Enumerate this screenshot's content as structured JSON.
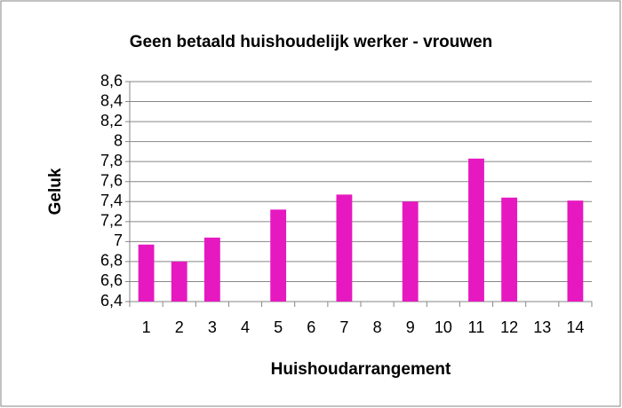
{
  "chart_data": {
    "type": "bar",
    "title": "Geen betaald huishoudelijk werker - vrouwen",
    "x_label": "Huishoudarrangement",
    "y_label": "Geluk",
    "categories": [
      "1",
      "2",
      "3",
      "4",
      "5",
      "6",
      "7",
      "8",
      "9",
      "10",
      "11",
      "12",
      "13",
      "14"
    ],
    "values": [
      6.97,
      6.8,
      7.04,
      null,
      7.32,
      null,
      7.47,
      null,
      7.4,
      null,
      7.83,
      7.44,
      null,
      7.41
    ],
    "color": "#e619c0",
    "ylim": [
      6.4,
      8.6
    ],
    "yticks": [
      {
        "value": 6.4,
        "label": "6,4"
      },
      {
        "value": 6.6,
        "label": "6,6"
      },
      {
        "value": 6.8,
        "label": "6,8"
      },
      7,
      {
        "value": 7.2,
        "label": "7,2"
      },
      {
        "value": 7.4,
        "label": "7,4"
      },
      {
        "value": 7.6,
        "label": "7,6"
      },
      {
        "value": 7.8,
        "label": "7,8"
      },
      8,
      {
        "value": 8.2,
        "label": "8,2"
      },
      {
        "value": 8.4,
        "label": "8,4"
      },
      {
        "value": 8.6,
        "label": "8,6"
      }
    ],
    "grid": true
  }
}
